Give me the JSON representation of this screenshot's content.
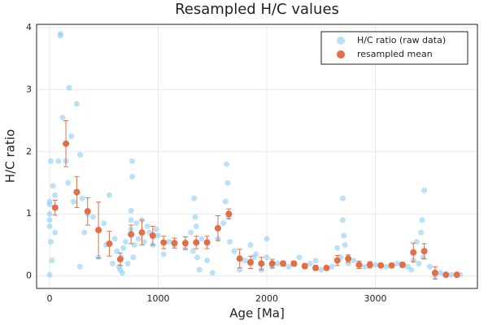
{
  "chart_data": {
    "type": "scatter",
    "title": "Resampled H/C values",
    "x_label": "Age [Ma]",
    "y_label": "H/C ratio",
    "xlim": [
      -120,
      3940
    ],
    "ylim": [
      -0.2,
      4.05
    ],
    "xticks": [
      0,
      1000,
      2000,
      3000
    ],
    "yticks": [
      0,
      1,
      2,
      3,
      4
    ],
    "grid": true,
    "legend": "top-right",
    "series": [
      {
        "name": "H/C ratio (raw data)",
        "color": "#8ecdf5",
        "kind": "points",
        "x": [
          0,
          0,
          0,
          0,
          0,
          0,
          10,
          10,
          20,
          30,
          50,
          50,
          80,
          100,
          100,
          120,
          150,
          170,
          180,
          200,
          220,
          250,
          280,
          280,
          300,
          320,
          350,
          400,
          450,
          500,
          520,
          550,
          580,
          600,
          620,
          640,
          650,
          660,
          670,
          680,
          700,
          720,
          750,
          750,
          750,
          760,
          760,
          770,
          780,
          800,
          820,
          850,
          870,
          900,
          920,
          950,
          980,
          1000,
          1050,
          1100,
          1150,
          1250,
          1300,
          1320,
          1330,
          1340,
          1350,
          1360,
          1380,
          1400,
          1450,
          1500,
          1550,
          1600,
          1620,
          1630,
          1640,
          1650,
          1660,
          1700,
          1750,
          1800,
          1850,
          1880,
          1900,
          1950,
          2000,
          2000,
          2050,
          2100,
          2200,
          2300,
          2400,
          2450,
          2500,
          2600,
          2650,
          2680,
          2700,
          2700,
          2710,
          2720,
          2750,
          2800,
          2900,
          3000,
          3100,
          3200,
          3300,
          3330,
          3350,
          3380,
          3400,
          3420,
          3430,
          3440,
          3450,
          3500,
          3550,
          3600,
          3700,
          3780
        ],
        "values": [
          1.15,
          1.0,
          0.9,
          0.8,
          1.2,
          0.02,
          1.85,
          0.55,
          0.25,
          1.45,
          1.3,
          0.7,
          1.85,
          3.9,
          3.87,
          2.55,
          1.85,
          1.5,
          3.03,
          2.25,
          1.2,
          2.77,
          1.95,
          0.15,
          1.25,
          0.7,
          1.0,
          0.95,
          0.3,
          0.85,
          0.5,
          1.3,
          0.2,
          0.6,
          0.4,
          0.15,
          0.1,
          0.3,
          0.05,
          0.45,
          0.55,
          0.2,
          1.05,
          0.9,
          0.75,
          1.85,
          1.6,
          0.3,
          0.5,
          0.85,
          0.6,
          0.9,
          0.55,
          0.8,
          0.7,
          0.5,
          0.75,
          0.65,
          0.35,
          0.55,
          0.5,
          0.45,
          0.7,
          0.4,
          1.25,
          0.95,
          0.8,
          0.3,
          0.1,
          0.6,
          0.25,
          0.05,
          0.6,
          0.85,
          1.2,
          1.8,
          1.5,
          0.95,
          0.55,
          0.4,
          0.1,
          0.25,
          0.5,
          0.3,
          0.35,
          0.1,
          0.6,
          0.3,
          0.15,
          0.2,
          0.15,
          0.3,
          0.2,
          0.25,
          0.1,
          0.15,
          0.45,
          0.3,
          1.25,
          0.9,
          0.65,
          0.5,
          0.2,
          0.25,
          0.15,
          0.18,
          0.15,
          0.2,
          0.15,
          0.1,
          0.25,
          0.55,
          0.2,
          0.7,
          0.9,
          0.3,
          1.38,
          0.15,
          0.0,
          0.05,
          0.02,
          0.02
        ]
      },
      {
        "name": "resampled mean",
        "color": "#e26f46",
        "kind": "errorbars",
        "x": [
          50,
          150,
          250,
          350,
          450,
          550,
          650,
          750,
          850,
          950,
          1050,
          1150,
          1250,
          1350,
          1450,
          1550,
          1650,
          1750,
          1850,
          1950,
          2050,
          2150,
          2250,
          2350,
          2450,
          2550,
          2650,
          2750,
          2850,
          2950,
          3050,
          3150,
          3250,
          3350,
          3450,
          3550,
          3650,
          3750
        ],
        "values": [
          1.1,
          2.13,
          1.35,
          1.04,
          0.74,
          0.52,
          0.27,
          0.67,
          0.7,
          0.65,
          0.54,
          0.53,
          0.53,
          0.54,
          0.54,
          0.77,
          1.0,
          0.28,
          0.22,
          0.2,
          0.2,
          0.2,
          0.2,
          0.16,
          0.13,
          0.13,
          0.25,
          0.28,
          0.18,
          0.18,
          0.17,
          0.17,
          0.18,
          0.38,
          0.4,
          0.05,
          0.02,
          0.02
        ],
        "errors": [
          0.12,
          0.37,
          0.25,
          0.22,
          0.45,
          0.2,
          0.1,
          0.15,
          0.2,
          0.15,
          0.1,
          0.08,
          0.1,
          0.1,
          0.1,
          0.2,
          0.08,
          0.15,
          0.1,
          0.1,
          0.07,
          0.04,
          0.04,
          0.04,
          0.04,
          0.03,
          0.08,
          0.06,
          0.06,
          0.05,
          0.03,
          0.03,
          0.04,
          0.15,
          0.12,
          0.1,
          0.02,
          0.02
        ]
      }
    ]
  }
}
